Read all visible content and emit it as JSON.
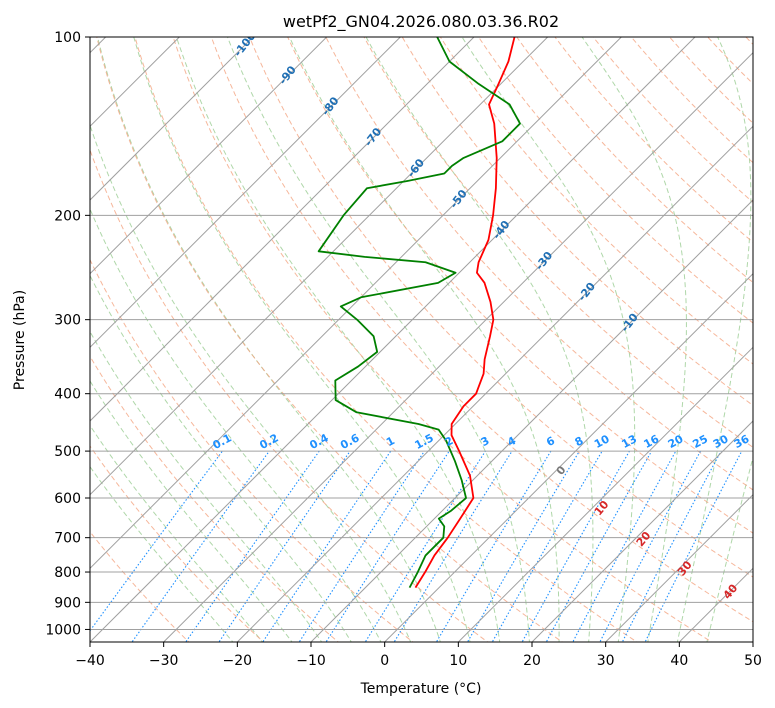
{
  "chart_data": {
    "type": "line",
    "subtype": "skew-T log-P diagram",
    "title": "wetPf2_GN04.2026.080.03.36.R02",
    "xlabel": "Temperature (°C)",
    "ylabel": "Pressure (hPa)",
    "xlim": [
      -40,
      50
    ],
    "ylim": [
      1050,
      100
    ],
    "yscale": "log",
    "grid": true,
    "x_ticks": [
      -40,
      -30,
      -20,
      -10,
      0,
      10,
      20,
      30,
      40,
      50
    ],
    "x_tick_labels": [
      "−40",
      "−30",
      "−20",
      "−10",
      "0",
      "10",
      "20",
      "30",
      "40",
      "50"
    ],
    "y_ticks": [
      100,
      200,
      300,
      400,
      500,
      600,
      700,
      800,
      900,
      1000
    ],
    "y_tick_labels": [
      "100",
      "200",
      "300",
      "400",
      "500",
      "600",
      "700",
      "800",
      "900",
      "1000"
    ],
    "colors": {
      "temperature": "#ff0000",
      "dewpoint": "#008000",
      "isotherms": "#a0a0a0",
      "dry_adiabats": "#f4a582",
      "moist_adiabats": "#a6d3a0",
      "mixing_ratio": "#1E90FF"
    },
    "series": [
      {
        "name": "",
        "role": "temperature",
        "color": "#ff0000",
        "points": [
          {
            "p": 850,
            "t": -3.2
          },
          {
            "p": 800,
            "t": -4.0
          },
          {
            "p": 750,
            "t": -5.0
          },
          {
            "p": 700,
            "t": -5.6
          },
          {
            "p": 650,
            "t": -6.5
          },
          {
            "p": 600,
            "t": -7.5
          },
          {
            "p": 550,
            "t": -11.0
          },
          {
            "p": 500,
            "t": -15.8
          },
          {
            "p": 470,
            "t": -19.0
          },
          {
            "p": 450,
            "t": -20.5
          },
          {
            "p": 420,
            "t": -21.3
          },
          {
            "p": 400,
            "t": -21.3
          },
          {
            "p": 370,
            "t": -23.0
          },
          {
            "p": 350,
            "t": -24.8
          },
          {
            "p": 320,
            "t": -27.2
          },
          {
            "p": 300,
            "t": -29.0
          },
          {
            "p": 280,
            "t": -31.8
          },
          {
            "p": 260,
            "t": -35.2
          },
          {
            "p": 250,
            "t": -37.6
          },
          {
            "p": 240,
            "t": -38.8
          },
          {
            "p": 220,
            "t": -40.5
          },
          {
            "p": 200,
            "t": -43.2
          },
          {
            "p": 180,
            "t": -46.5
          },
          {
            "p": 160,
            "t": -50.5
          },
          {
            "p": 140,
            "t": -55.5
          },
          {
            "p": 130,
            "t": -58.8
          },
          {
            "p": 120,
            "t": -60.3
          },
          {
            "p": 110,
            "t": -62.0
          },
          {
            "p": 100,
            "t": -64.5
          }
        ]
      },
      {
        "name": "",
        "role": "dewpoint",
        "color": "#008000",
        "points": [
          {
            "p": 850,
            "t": -4.0
          },
          {
            "p": 800,
            "t": -5.0
          },
          {
            "p": 750,
            "t": -6.2
          },
          {
            "p": 700,
            "t": -6.2
          },
          {
            "p": 670,
            "t": -7.6
          },
          {
            "p": 650,
            "t": -9.4
          },
          {
            "p": 630,
            "t": -8.8
          },
          {
            "p": 600,
            "t": -8.5
          },
          {
            "p": 560,
            "t": -11.5
          },
          {
            "p": 520,
            "t": -15.0
          },
          {
            "p": 480,
            "t": -19.0
          },
          {
            "p": 460,
            "t": -21.5
          },
          {
            "p": 450,
            "t": -25.0
          },
          {
            "p": 430,
            "t": -35.0
          },
          {
            "p": 410,
            "t": -39.5
          },
          {
            "p": 380,
            "t": -42.2
          },
          {
            "p": 360,
            "t": -41.0
          },
          {
            "p": 340,
            "t": -40.4
          },
          {
            "p": 320,
            "t": -43.0
          },
          {
            "p": 300,
            "t": -47.5
          },
          {
            "p": 285,
            "t": -51.5
          },
          {
            "p": 275,
            "t": -50.0
          },
          {
            "p": 260,
            "t": -41.5
          },
          {
            "p": 250,
            "t": -40.5
          },
          {
            "p": 240,
            "t": -46.0
          },
          {
            "p": 235,
            "t": -55.0
          },
          {
            "p": 230,
            "t": -62.0
          },
          {
            "p": 200,
            "t": -63.5
          },
          {
            "p": 180,
            "t": -64.0
          },
          {
            "p": 175,
            "t": -59.5
          },
          {
            "p": 170,
            "t": -55.5
          },
          {
            "p": 165,
            "t": -55.5
          },
          {
            "p": 160,
            "t": -55.0
          },
          {
            "p": 150,
            "t": -52.0
          },
          {
            "p": 140,
            "t": -52.0
          },
          {
            "p": 130,
            "t": -56.0
          },
          {
            "p": 120,
            "t": -63.0
          },
          {
            "p": 110,
            "t": -70.0
          },
          {
            "p": 100,
            "t": -75.0
          }
        ]
      }
    ],
    "dry_adiabat_labels": [
      "-100",
      "-90",
      "-80",
      "-70",
      "-60",
      "-50",
      "-40",
      "-30",
      "-20",
      "-10"
    ],
    "moist_adiabat_labels": [
      "0",
      "10",
      "20",
      "30",
      "40"
    ],
    "mixing_ratio_labels": [
      "0.1",
      "0.2",
      "0.4",
      "0.6",
      "1",
      "1.5",
      "2",
      "3",
      "4",
      "6",
      "8",
      "10",
      "13",
      "16",
      "20",
      "25",
      "30",
      "36"
    ]
  }
}
